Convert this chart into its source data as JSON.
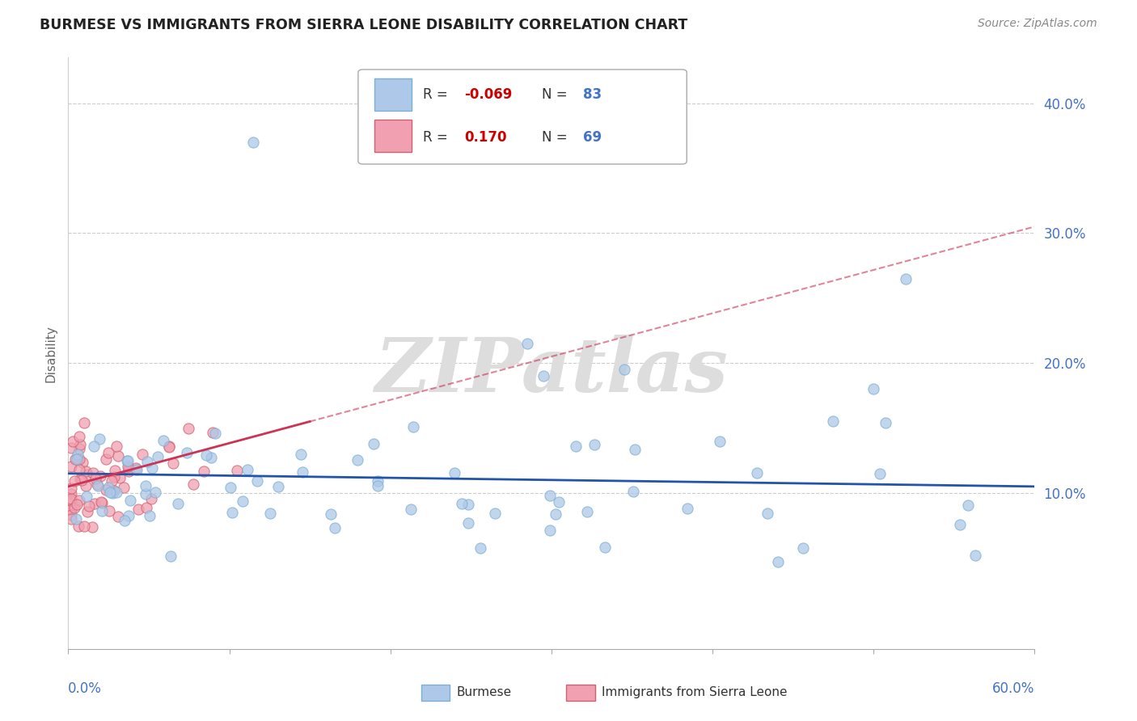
{
  "title": "BURMESE VS IMMIGRANTS FROM SIERRA LEONE DISABILITY CORRELATION CHART",
  "source": "Source: ZipAtlas.com",
  "ylabel": "Disability",
  "xmin": 0.0,
  "xmax": 0.6,
  "ymin": -0.02,
  "ymax": 0.435,
  "yticks": [
    0.1,
    0.2,
    0.3,
    0.4
  ],
  "ytick_labels": [
    "10.0%",
    "20.0%",
    "30.0%",
    "40.0%"
  ],
  "series": [
    {
      "name": "Burmese",
      "R": -0.069,
      "N": 83,
      "color": "#adc8e8",
      "edge_color": "#7bafd4",
      "trend_color": "#2255aa",
      "trend_y_start": 0.115,
      "trend_y_end": 0.105
    },
    {
      "name": "Immigrants from Sierra Leone",
      "R": 0.17,
      "N": 69,
      "color": "#f0a0b0",
      "edge_color": "#d06070",
      "trend_color": "#cc3355",
      "trend_y_start": 0.105,
      "trend_y_end": 0.155
    }
  ],
  "sierra_trend_dashed_y_end": 0.305,
  "watermark": "ZIPatlas",
  "background_color": "#ffffff",
  "grid_color": "#cccccc"
}
